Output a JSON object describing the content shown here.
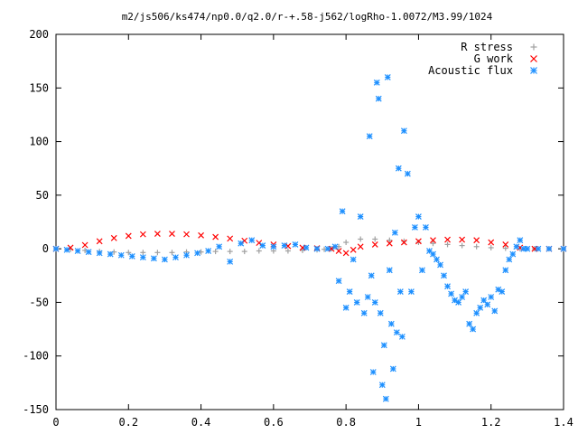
{
  "chart_data": {
    "type": "scatter",
    "title": "m2/js506/ks474/np0.0/q2.0/r-+.58-j562/logRho-1.0072/M3.99/1024",
    "xlabel": "",
    "ylabel": "",
    "xlim": [
      0,
      1.4
    ],
    "ylim": [
      -150,
      200
    ],
    "x_ticks": [
      "0",
      "0.2",
      "0.4",
      "0.6",
      "0.8",
      "1",
      "1.2",
      "1.4"
    ],
    "y_ticks": [
      "200",
      "150",
      "100",
      "50",
      "0",
      "-50",
      "-100",
      "-150"
    ],
    "grid": false,
    "legend_position": "top-right",
    "series": [
      {
        "name": "R stress",
        "marker": "+",
        "color": "#a0a0a0",
        "x": [
          0.0,
          0.04,
          0.08,
          0.12,
          0.16,
          0.2,
          0.24,
          0.28,
          0.32,
          0.36,
          0.4,
          0.44,
          0.48,
          0.52,
          0.56,
          0.6,
          0.64,
          0.68,
          0.72,
          0.74,
          0.76,
          0.78,
          0.8,
          0.84,
          0.88,
          0.92,
          0.96,
          1.0,
          1.04,
          1.08,
          1.12,
          1.16,
          1.2,
          1.24,
          1.28,
          1.32,
          1.36,
          1.4
        ],
        "y": [
          0,
          -0.5,
          -1.5,
          -2.5,
          -3,
          -3.5,
          -3.5,
          -3.5,
          -3.5,
          -3,
          -3,
          -2.5,
          -2.5,
          -2.5,
          -2,
          -2,
          -2,
          -1.5,
          -1,
          -0.5,
          0,
          2,
          6,
          9,
          9,
          8,
          7,
          6,
          5,
          4,
          3,
          2,
          1,
          0.5,
          0,
          0,
          0,
          0
        ]
      },
      {
        "name": "G work",
        "marker": "x",
        "color": "#ff0000",
        "x": [
          0.0,
          0.04,
          0.08,
          0.12,
          0.16,
          0.2,
          0.24,
          0.28,
          0.32,
          0.36,
          0.4,
          0.44,
          0.48,
          0.52,
          0.56,
          0.6,
          0.64,
          0.68,
          0.72,
          0.76,
          0.78,
          0.8,
          0.82,
          0.84,
          0.88,
          0.92,
          0.96,
          1.0,
          1.04,
          1.08,
          1.12,
          1.16,
          1.2,
          1.24,
          1.28,
          1.32,
          1.36,
          1.4
        ],
        "y": [
          0,
          1,
          3.5,
          7,
          10,
          12,
          13.5,
          14,
          14,
          13.5,
          12.5,
          11,
          9.5,
          7.5,
          5.5,
          4,
          2.5,
          1,
          0.5,
          0,
          -2,
          -4,
          -1,
          2,
          4,
          5,
          6,
          7,
          8,
          8.5,
          8.5,
          8,
          6,
          4,
          1,
          0,
          0,
          0
        ]
      },
      {
        "name": "Acoustic flux",
        "marker": "*",
        "color": "#1e90ff",
        "x": [
          0.0,
          0.03,
          0.06,
          0.09,
          0.12,
          0.15,
          0.18,
          0.21,
          0.24,
          0.27,
          0.3,
          0.33,
          0.36,
          0.39,
          0.42,
          0.45,
          0.48,
          0.51,
          0.54,
          0.57,
          0.6,
          0.63,
          0.66,
          0.69,
          0.72,
          0.75,
          0.77,
          0.78,
          0.79,
          0.8,
          0.81,
          0.82,
          0.83,
          0.84,
          0.85,
          0.86,
          0.865,
          0.87,
          0.875,
          0.88,
          0.885,
          0.89,
          0.895,
          0.9,
          0.905,
          0.91,
          0.915,
          0.92,
          0.925,
          0.93,
          0.935,
          0.94,
          0.945,
          0.95,
          0.955,
          0.96,
          0.97,
          0.98,
          0.99,
          1.0,
          1.01,
          1.02,
          1.03,
          1.04,
          1.05,
          1.06,
          1.07,
          1.08,
          1.09,
          1.1,
          1.11,
          1.12,
          1.13,
          1.14,
          1.15,
          1.16,
          1.17,
          1.18,
          1.19,
          1.2,
          1.21,
          1.22,
          1.23,
          1.24,
          1.25,
          1.26,
          1.27,
          1.28,
          1.29,
          1.3,
          1.33,
          1.36,
          1.4
        ],
        "y": [
          0,
          -1,
          -2,
          -3,
          -4,
          -5,
          -6,
          -7,
          -8,
          -9,
          -10,
          -8,
          -6,
          -4,
          -2,
          2,
          -12,
          5,
          8,
          3,
          2,
          3,
          4,
          1,
          0,
          0,
          2,
          -30,
          35,
          -55,
          -40,
          -10,
          -50,
          30,
          -60,
          -45,
          105,
          -25,
          -115,
          -50,
          155,
          140,
          -60,
          -127,
          -90,
          -140,
          160,
          -20,
          -70,
          -112,
          15,
          -78,
          75,
          -40,
          -82,
          110,
          70,
          -40,
          20,
          30,
          -20,
          20,
          -2,
          -5,
          -10,
          -15,
          -25,
          -35,
          -42,
          -48,
          -50,
          -45,
          -40,
          -70,
          -75,
          -60,
          -55,
          -48,
          -52,
          -45,
          -58,
          -38,
          -40,
          -20,
          -10,
          -5,
          2,
          8,
          0,
          0,
          0,
          0,
          0
        ]
      }
    ]
  }
}
